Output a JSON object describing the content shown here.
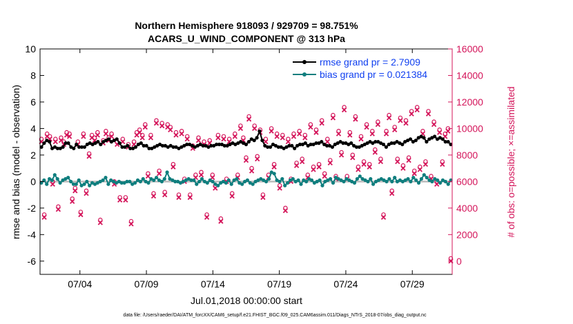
{
  "chart_data": {
    "type": "line",
    "title_line1": "Northern Hemisphere 918093 / 929709 = 98.751%",
    "title_line2": "ACARS_U_WIND_COMPONENT @ 313 hPa",
    "xlabel": "Jul.01,2018 00:00:00 start",
    "ylabel_left": "rmse and bias (model - observation)",
    "ylabel_right": "# of obs: o=possible; ×=assimilated",
    "footer": "data file: /Users/raeder/DAI/ATM_forcXX/CAM6_setup/f.e21.FHIST_BGC.f09_025.CAM6assim.011/Diags_NTrS_2018-07/obs_diag_output.nc",
    "x_ticks": [
      {
        "day": 4,
        "label": "07/04"
      },
      {
        "day": 9,
        "label": "07/09"
      },
      {
        "day": 14,
        "label": "07/14"
      },
      {
        "day": 19,
        "label": "07/19"
      },
      {
        "day": 24,
        "label": "07/24"
      },
      {
        "day": 29,
        "label": "07/29"
      }
    ],
    "xlim": [
      1.0,
      32.0
    ],
    "ylim_left": [
      -7,
      10
    ],
    "ylim_right": [
      -1000,
      16000
    ],
    "y_ticks_left": [
      -6,
      -4,
      -2,
      0,
      2,
      4,
      6,
      8,
      10
    ],
    "y_ticks_right": [
      0,
      2000,
      4000,
      6000,
      8000,
      10000,
      12000,
      14000,
      16000
    ],
    "legend": [
      {
        "label": "rmse grand pr = 2.7909",
        "color": "#000000"
      },
      {
        "label": "bias grand pr = 0.021384",
        "color": "#0f7e7e"
      }
    ],
    "colors": {
      "rmse": "#000000",
      "bias": "#0f7e7e",
      "obs": "#d4145a",
      "right_axis": "#d4145a",
      "legend_text": "#0f3ff0",
      "zero_line": "#bbbbbb"
    },
    "series": [
      {
        "name": "rmse",
        "axis": "left",
        "values": [
          2.6,
          2.9,
          3.1,
          3.0,
          2.5,
          2.6,
          2.5,
          2.5,
          2.6,
          2.9,
          2.9,
          2.6,
          2.5,
          2.8,
          2.6,
          2.6,
          2.6,
          2.8,
          2.9,
          2.8,
          2.9,
          3.0,
          2.8,
          3.0,
          3.1,
          3.2,
          3.0,
          3.1,
          3.2,
          2.9,
          2.6,
          2.6,
          2.7,
          2.5,
          2.5,
          2.6,
          2.8,
          2.9,
          2.7,
          2.7,
          2.5,
          2.5,
          2.6,
          2.7,
          2.8,
          2.7,
          2.7,
          2.6,
          2.7,
          2.6,
          2.6,
          2.5,
          2.6,
          2.7,
          2.8,
          2.8,
          2.7,
          2.6,
          2.7,
          2.8,
          2.7,
          2.7,
          2.6,
          2.7,
          2.7,
          2.8,
          2.8,
          2.8,
          2.7,
          2.7,
          2.8,
          2.9,
          2.8,
          2.9,
          3.0,
          2.9,
          2.8,
          3.0,
          3.2,
          3.1,
          3.3,
          3.8,
          3.1,
          2.7,
          2.6,
          2.6,
          2.8,
          2.7,
          2.6,
          2.6,
          2.5,
          2.6,
          2.7,
          2.7,
          2.5,
          2.7,
          2.8,
          2.8,
          2.9,
          2.7,
          2.8,
          2.8,
          2.9,
          2.9,
          3.0,
          2.8,
          2.7,
          2.7,
          2.6,
          2.8,
          2.9,
          3.0,
          2.9,
          2.9,
          2.8,
          2.9,
          2.7,
          2.6,
          2.6,
          2.7,
          2.8,
          2.9,
          3.0,
          2.9,
          3.0,
          3.0,
          2.9,
          2.8,
          2.6,
          2.8,
          2.9,
          2.9,
          3.0,
          2.9,
          2.8,
          3.0,
          3.1,
          3.2,
          3.0,
          3.1,
          3.3,
          3.4,
          3.3,
          3.0,
          3.2,
          3.3,
          3.4,
          3.2,
          3.3,
          3.2,
          3.0,
          3.0,
          2.8
        ]
      },
      {
        "name": "bias",
        "axis": "left",
        "values": [
          -0.1,
          0.1,
          -0.2,
          0.2,
          0.1,
          0.5,
          0.2,
          -0.1,
          0.1,
          0.2,
          0.3,
          0.0,
          -0.2,
          -0.2,
          0.1,
          -0.3,
          -0.2,
          0.0,
          -0.3,
          -0.1,
          -0.2,
          -0.1,
          0.0,
          0.1,
          0.3,
          -0.2,
          0.1,
          0.0,
          -0.1,
          0.0,
          -0.1,
          -0.1,
          0.0,
          0.0,
          -0.2,
          -0.1,
          0.1,
          0.0,
          0.2,
          0.0,
          -0.1,
          0.2,
          0.1,
          0.3,
          0.1,
          0.0,
          0.2,
          0.7,
          0.2,
          0.1,
          0.0,
          0.0,
          -0.1,
          0.0,
          0.1,
          0.2,
          0.1,
          0.1,
          -0.2,
          0.0,
          0.2,
          0.0,
          -0.1,
          0.1,
          0.0,
          -0.2,
          -0.3,
          -0.1,
          0.0,
          -0.1,
          0.1,
          -0.2,
          0.1,
          0.2,
          -0.1,
          -0.2,
          0.0,
          0.1,
          -0.1,
          -0.2,
          0.0,
          0.1,
          0.2,
          0.1,
          0.0,
          0.2,
          0.7,
          0.6,
          0.1,
          0.0,
          0.2,
          -0.3,
          -0.1,
          0.1,
          0.2,
          0.0,
          0.1,
          -0.2,
          0.1,
          0.0,
          0.2,
          0.1,
          -0.1,
          0.0,
          0.1,
          -0.3,
          0.0,
          0.1,
          0.2,
          -0.1,
          0.3,
          0.2,
          0.1,
          0.0,
          0.2,
          0.1,
          0.0,
          -0.1,
          0.2,
          0.4,
          0.2,
          0.1,
          0.0,
          0.2,
          -0.2,
          0.0,
          0.1,
          0.2,
          0.1,
          0.0,
          0.2,
          0.0,
          0.3,
          0.0,
          0.1,
          0.0,
          0.1,
          0.2,
          0.0,
          0.3,
          0.1,
          -0.1,
          0.2,
          0.5,
          0.3,
          0.1,
          0.0,
          0.2,
          0.1,
          -0.1,
          0.1,
          0.0,
          -0.2,
          0.1
        ]
      },
      {
        "name": "obs_count",
        "axis": "right",
        "values": [
          9000,
          3300,
          9400,
          9200,
          5800,
          9000,
          3900,
          9100,
          8800,
          9500,
          9400,
          4500,
          5300,
          8800,
          3500,
          9400,
          5100,
          7900,
          9300,
          9100,
          9500,
          2900,
          8900,
          9600,
          9100,
          9400,
          5800,
          8800,
          4600,
          9000,
          4600,
          8600,
          2800,
          8800,
          9500,
          9700,
          9300,
          10100,
          6400,
          9300,
          4900,
          10400,
          6600,
          10200,
          5000,
          10100,
          9900,
          7100,
          9500,
          4800,
          9600,
          6000,
          9200,
          4800,
          8500,
          6300,
          9100,
          6500,
          8800,
          3300,
          8900,
          6300,
          5500,
          9300,
          3000,
          9200,
          6000,
          9000,
          4900,
          9400,
          6300,
          10000,
          9100,
          7600,
          10700,
          6800,
          10000,
          7700,
          9700,
          4800,
          9000,
          6300,
          9800,
          7100,
          9400,
          5500,
          9300,
          3800,
          9000,
          6000,
          9400,
          7200,
          9600,
          7500,
          9300,
          6300,
          10100,
          6900,
          9700,
          7100,
          10400,
          6400,
          9000,
          7400,
          10800,
          6200,
          9600,
          8000,
          11400,
          6200,
          9500,
          7800,
          10700,
          6900,
          9200,
          7300,
          10100,
          7100,
          9600,
          8200,
          10300,
          7500,
          3300,
          9600,
          10800,
          5100,
          9900,
          7500,
          10600,
          7000,
          10400,
          7600,
          11100,
          6600,
          11400,
          6900,
          9600,
          7300,
          11100,
          6200,
          10300,
          5800,
          9700,
          7300,
          9400,
          9800,
          0
        ]
      }
    ]
  }
}
